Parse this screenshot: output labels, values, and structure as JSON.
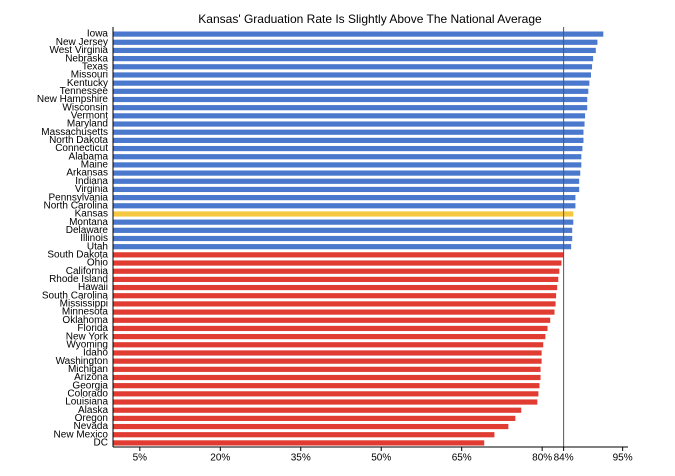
{
  "chart_data": {
    "type": "hbar",
    "title": "Kansas' Graduation Rate Is Slightly Above The National Average",
    "categories": [
      "Iowa",
      "New Jersey",
      "West Virginia",
      "Nebraska",
      "Texas",
      "Missouri",
      "Kentucky",
      "Tennessee",
      "New Hampshire",
      "Wisconsin",
      "Vermont",
      "Maryland",
      "Massachusetts",
      "North Dakota",
      "Connecticut",
      "Alabama",
      "Maine",
      "Arkansas",
      "Indiana",
      "Virginia",
      "Pennsylvania",
      "North Carolina",
      "Kansas",
      "Montana",
      "Delaware",
      "Illinois",
      "Utah",
      "South Dakota",
      "Ohio",
      "California",
      "Rhode Island",
      "Hawaii",
      "South Carolina",
      "Mississippi",
      "Minnesota",
      "Oklahoma",
      "Florida",
      "New York",
      "Wyoming",
      "Idaho",
      "Washington",
      "Michigan",
      "Arizona",
      "Georgia",
      "Colorado",
      "Louisiana",
      "Alaska",
      "Oregon",
      "Nevada",
      "New Mexico",
      "DC"
    ],
    "values": [
      91.4,
      90.3,
      90,
      89.5,
      89.3,
      89.1,
      88.8,
      88.6,
      88.4,
      88.4,
      88,
      87.9,
      87.7,
      87.7,
      87.5,
      87.3,
      87.3,
      87.1,
      86.9,
      86.9,
      86.2,
      86.2,
      85.8,
      85.8,
      85.6,
      85.6,
      85.4,
      84,
      83.6,
      83.2,
      83,
      82.8,
      82.6,
      82.5,
      82.3,
      81.5,
      81,
      80.6,
      80.2,
      79.9,
      79.9,
      79.7,
      79.7,
      79.5,
      79.3,
      79.1,
      76.1,
      75,
      73.7,
      71.1,
      69.2
    ],
    "colors": [
      "#4a78cc",
      "#4a78cc",
      "#4a78cc",
      "#4a78cc",
      "#4a78cc",
      "#4a78cc",
      "#4a78cc",
      "#4a78cc",
      "#4a78cc",
      "#4a78cc",
      "#4a78cc",
      "#4a78cc",
      "#4a78cc",
      "#4a78cc",
      "#4a78cc",
      "#4a78cc",
      "#4a78cc",
      "#4a78cc",
      "#4a78cc",
      "#4a78cc",
      "#4a78cc",
      "#4a78cc",
      "#f5c842",
      "#4a78cc",
      "#4a78cc",
      "#4a78cc",
      "#4a78cc",
      "#e03c31",
      "#e03c31",
      "#e03c31",
      "#e03c31",
      "#e03c31",
      "#e03c31",
      "#e03c31",
      "#e03c31",
      "#e03c31",
      "#e03c31",
      "#e03c31",
      "#e03c31",
      "#e03c31",
      "#e03c31",
      "#e03c31",
      "#e03c31",
      "#e03c31",
      "#e03c31",
      "#e03c31",
      "#e03c31",
      "#e03c31",
      "#e03c31",
      "#e03c31",
      "#e03c31"
    ],
    "xlim": [
      0,
      96
    ],
    "xticks": [
      {
        "value": 5,
        "label": "5%"
      },
      {
        "value": 20,
        "label": "20%"
      },
      {
        "value": 35,
        "label": "35%"
      },
      {
        "value": 50,
        "label": "50%"
      },
      {
        "value": 65,
        "label": "65%"
      },
      {
        "value": 80,
        "label": "80%"
      },
      {
        "value": 84,
        "label": "84%"
      },
      {
        "value": 95,
        "label": "95%"
      }
    ],
    "reference_line": 84
  }
}
